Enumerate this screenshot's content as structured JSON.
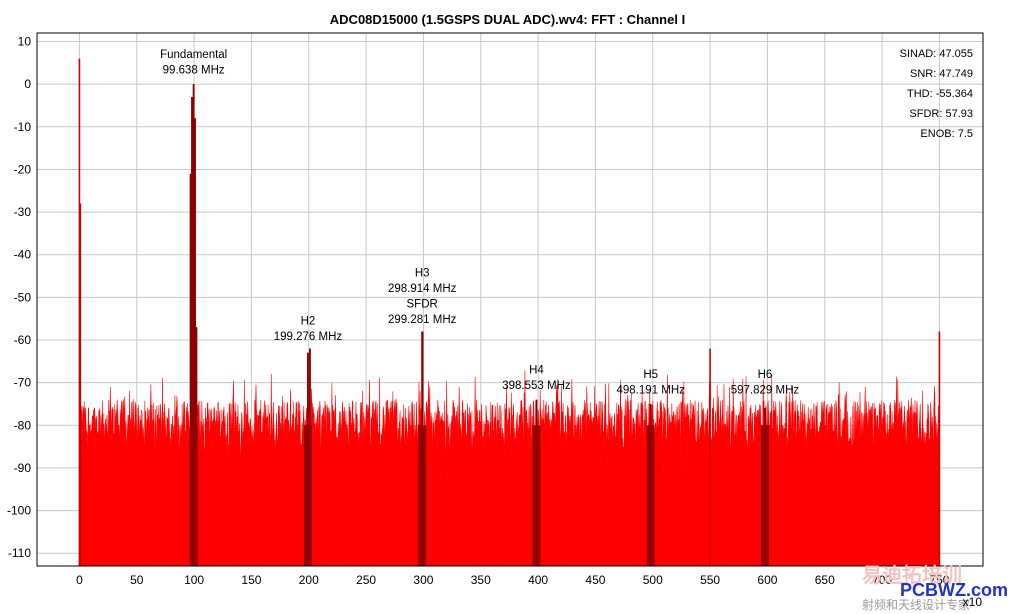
{
  "chart_data": {
    "type": "bar",
    "title": "ADC08D15000 (1.5GSPS DUAL ADC).wv4: FFT : Channel I",
    "xlabel": "",
    "ylabel": "",
    "xlim": [
      -37,
      788
    ],
    "ylim": [
      -113,
      12
    ],
    "x_ticks": [
      0,
      50,
      100,
      150,
      200,
      250,
      300,
      350,
      400,
      450,
      500,
      550,
      600,
      650,
      700,
      750
    ],
    "x_tick_labels": [
      "0",
      "50",
      "100",
      "150",
      "200",
      "250",
      "300",
      "350",
      "400",
      "450",
      "500",
      "550",
      "600",
      "650",
      "700",
      "750"
    ],
    "y_ticks": [
      10,
      0,
      -10,
      -20,
      -30,
      -40,
      -50,
      -60,
      -70,
      -80,
      -90,
      -100,
      -110
    ],
    "y_tick_labels": [
      "10",
      "0",
      "-10",
      "-20",
      "-30",
      "-40",
      "-50",
      "-60",
      "-70",
      "-80",
      "-90",
      "-100",
      "-110"
    ],
    "x_scale_note": "x10",
    "grid": true,
    "fill_color": "#ff0000",
    "harmonic_color": "#8b0000",
    "noise_floor_range": [
      -86,
      -74
    ],
    "series": [
      {
        "points": [
          {
            "x": 0,
            "y": 6
          },
          {
            "x": 0.8,
            "y": -28
          },
          {
            "x": 97,
            "y": -21
          },
          {
            "x": 98.2,
            "y": -3
          },
          {
            "x": 99.638,
            "y": 0
          },
          {
            "x": 100.8,
            "y": -8
          },
          {
            "x": 102,
            "y": -57
          },
          {
            "x": 199.276,
            "y": -63
          },
          {
            "x": 201,
            "y": -62
          },
          {
            "x": 298.914,
            "y": -58
          },
          {
            "x": 299.281,
            "y": -58
          },
          {
            "x": 398.553,
            "y": -74
          },
          {
            "x": 498.191,
            "y": -75
          },
          {
            "x": 550,
            "y": -62
          },
          {
            "x": 597.829,
            "y": -76
          },
          {
            "x": 750,
            "y": -58
          }
        ]
      }
    ],
    "harmonic_bands": [
      {
        "center": 99.638
      },
      {
        "center": 199.276
      },
      {
        "center": 298.914
      },
      {
        "center": 398.553
      },
      {
        "center": 498.191
      },
      {
        "center": 597.829
      }
    ],
    "annotations": [
      {
        "id": "fundamental",
        "x": 99.638,
        "y": 2.5,
        "lines": [
          "Fundamental",
          "99.638 MHz"
        ]
      },
      {
        "id": "h2",
        "x": 199.276,
        "y": -60,
        "lines": [
          "H2",
          "199.276 MHz"
        ]
      },
      {
        "id": "h3",
        "x": 298.914,
        "y": -56,
        "lines": [
          "H3",
          "298.914 MHz",
          "SFDR",
          "299.281 MHz"
        ]
      },
      {
        "id": "h4",
        "x": 398.553,
        "y": -71.5,
        "lines": [
          "H4",
          "398.553 MHz"
        ]
      },
      {
        "id": "h5",
        "x": 498.191,
        "y": -72.5,
        "lines": [
          "H5",
          "498.191 MHz"
        ]
      },
      {
        "id": "h6",
        "x": 597.829,
        "y": -72.5,
        "lines": [
          "H6",
          "597.829 MHz"
        ]
      }
    ],
    "stats": [
      "SINAD: 47.055",
      "SNR: 47.749",
      "THD: -55.364",
      "SFDR: 57.93",
      "ENOB: 7.5"
    ]
  },
  "watermark": {
    "line1": "易迪拓培训",
    "line2": "PCBWZ.com",
    "line3": "射频和天线设计专家"
  }
}
